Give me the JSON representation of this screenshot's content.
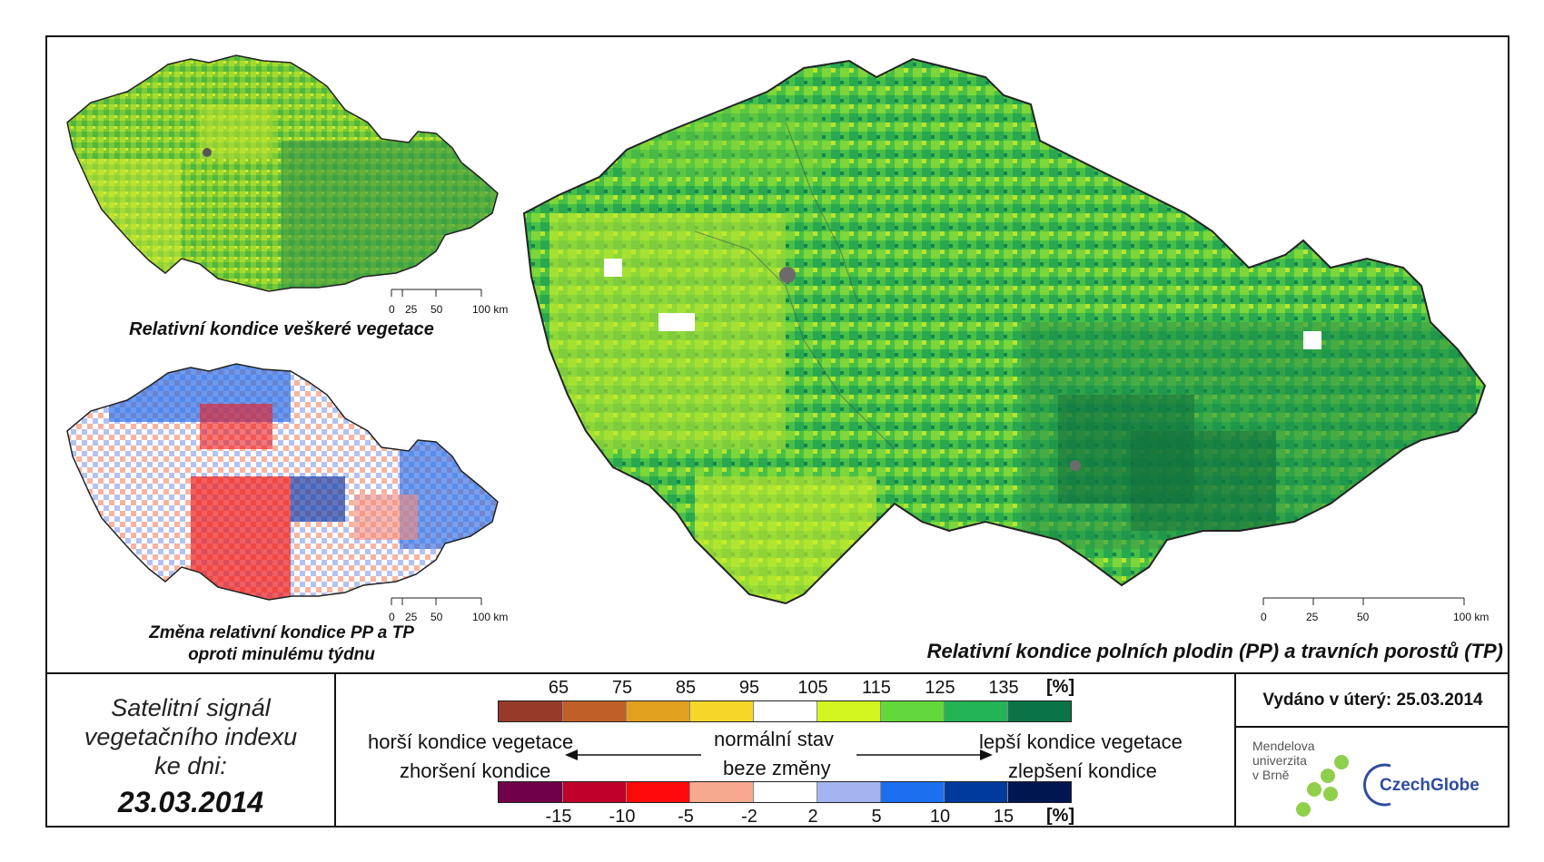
{
  "maps": {
    "all_vegetation": {
      "caption": "Relativní kondice veškeré vegetace",
      "scale_labels": [
        "0",
        "25",
        "50",
        "100 km"
      ]
    },
    "weekly_change": {
      "caption_line1": "Změna relativní kondice PP a TP",
      "caption_line2": "oproti minulému týdnu",
      "scale_labels": [
        "0",
        "25",
        "50",
        "100 km"
      ]
    },
    "main": {
      "caption": "Relativní kondice polních plodin (PP) a travních porostů (TP)",
      "scale_labels": [
        "0",
        "25",
        "50",
        "100 km"
      ]
    }
  },
  "satellite_panel": {
    "line1": "Satelitní signál",
    "line2": "vegetačního indexu",
    "line3": "ke dni:",
    "date": "23.03.2014"
  },
  "legend": {
    "condition_ticks": [
      "65",
      "75",
      "85",
      "95",
      "105",
      "115",
      "125",
      "135"
    ],
    "condition_unit": "[%]",
    "condition_colors": [
      "#973a2a",
      "#c15f28",
      "#e1a11e",
      "#f5d629",
      "#ffffff",
      "#d2f51f",
      "#62d83a",
      "#23b456",
      "#0b7447"
    ],
    "change_ticks": [
      "-15",
      "-10",
      "-5",
      "-2",
      "2",
      "5",
      "10",
      "15"
    ],
    "change_unit": "[%]",
    "change_colors": [
      "#700048",
      "#c0002a",
      "#ff0a0a",
      "#f7a98f",
      "#ffffff",
      "#a3b5f0",
      "#1c70ef",
      "#003b9c",
      "#001650"
    ],
    "worse_condition": "horší kondice vegetace",
    "normal_state": "normální stav",
    "better_condition": "lepší kondice vegetace",
    "deterioration": "zhoršení kondice",
    "no_change": "beze změny",
    "improvement": "zlepšení kondice"
  },
  "issued": "Vydáno v úterý: 25.03.2014",
  "logos": {
    "mendel_line1": "Mendelova",
    "mendel_line2": "univerzita",
    "mendel_line3": "v Brně",
    "czechglobe": "CzechGlobe"
  }
}
